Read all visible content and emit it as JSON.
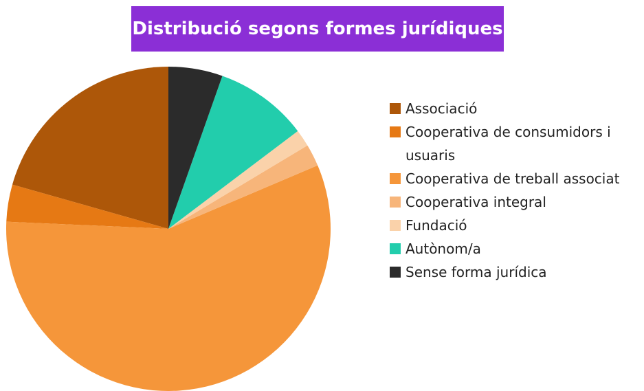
{
  "chart_data": {
    "type": "pie",
    "title": "Distribució segons formes jurídiques",
    "categories": [
      "Associació",
      "Cooperativa de consumidors i usuaris",
      "Cooperativa de treball associat",
      "Cooperativa integral",
      "Fundació",
      "Autònom/a",
      "Sense forma jurídica"
    ],
    "values": [
      20.6,
      3.7,
      57.1,
      2.2,
      1.7,
      9.3,
      5.4
    ],
    "colors": [
      "#ad5709",
      "#e67914",
      "#f5963a",
      "#f7b57a",
      "#fad2aa",
      "#22cdac",
      "#2b2b2b"
    ],
    "legend": "right"
  }
}
